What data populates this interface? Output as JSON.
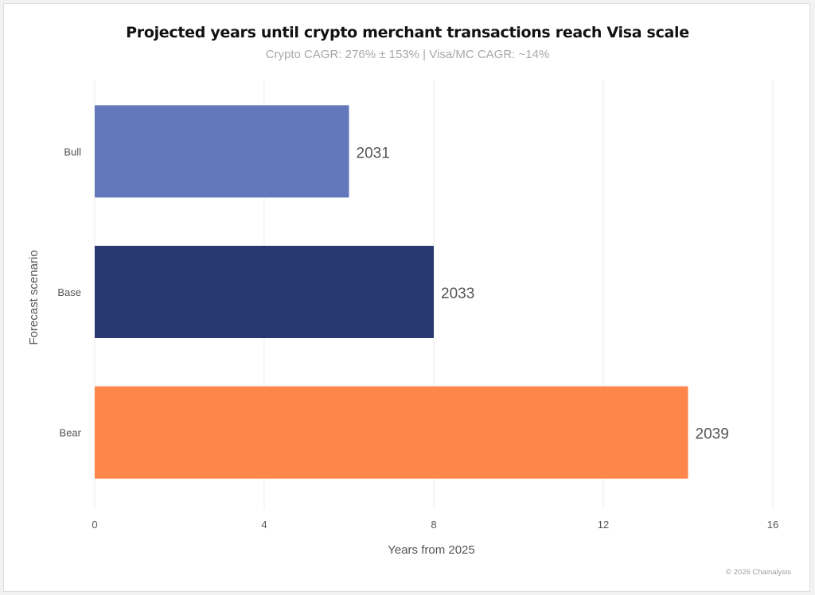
{
  "chart_data": {
    "type": "bar",
    "orientation": "horizontal",
    "title": "Projected years until crypto merchant transactions reach Visa scale",
    "subtitle": "Crypto CAGR: 276% ± 153% | Visa/MC CAGR: ~14%",
    "categories": [
      "Bull",
      "Base",
      "Bear"
    ],
    "values": [
      6,
      8,
      14
    ],
    "data_labels": [
      "2031",
      "2033",
      "2039"
    ],
    "colors": [
      "#6378bb",
      "#283870",
      "#ff864b"
    ],
    "xlabel": "Years from 2025",
    "ylabel": "Forecast scenario",
    "xlim": [
      0,
      16
    ],
    "xticks": [
      "0",
      "4",
      "8",
      "12",
      "16"
    ],
    "grid": true,
    "legend": "none"
  },
  "footer": {
    "credit": "© 2026 Chainalysis"
  }
}
